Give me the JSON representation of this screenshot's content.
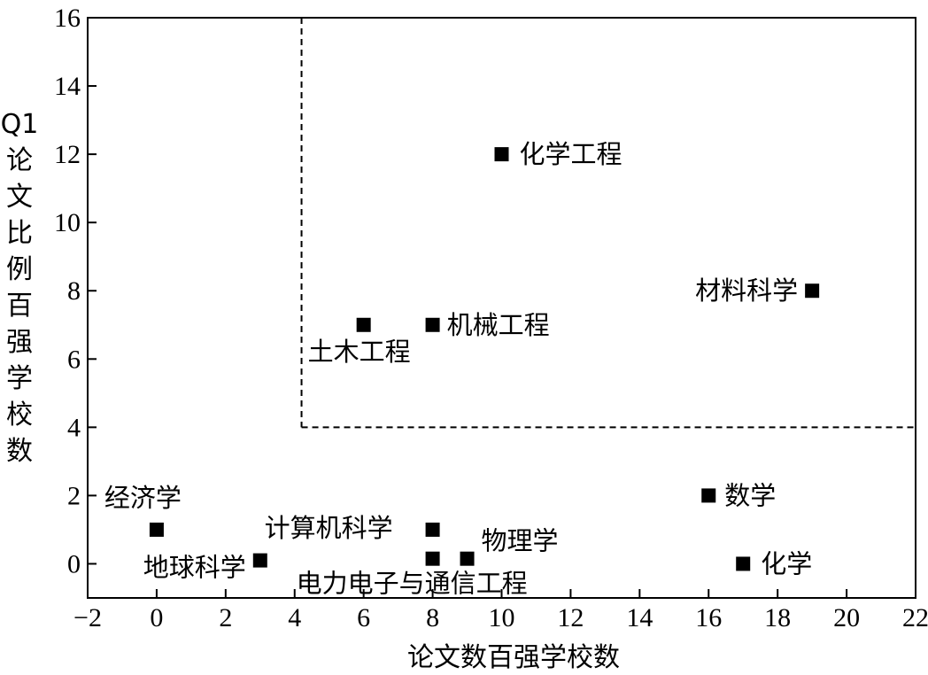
{
  "chart_data": {
    "type": "scatter",
    "xlabel": "论文数百强学校数",
    "ylabel": "Q1论文比例百强学校数",
    "xlim": [
      -2,
      22
    ],
    "ylim": [
      -1,
      16
    ],
    "xticks": [
      -2,
      0,
      2,
      4,
      6,
      8,
      10,
      12,
      14,
      16,
      18,
      20,
      22
    ],
    "yticks": [
      0,
      2,
      4,
      6,
      8,
      10,
      12,
      14,
      16
    ],
    "tick_labels_x": [
      "−2",
      "0",
      "2",
      "4",
      "6",
      "8",
      "10",
      "12",
      "14",
      "16",
      "18",
      "20",
      "22"
    ],
    "tick_labels_y": [
      "0",
      "2",
      "4",
      "6",
      "8",
      "10",
      "12",
      "14",
      "16"
    ],
    "grid": false,
    "marker": "square",
    "marker_color": "#000000",
    "threshold_lines": {
      "x": 4.2,
      "y": 4,
      "style": "dashed"
    },
    "points": [
      {
        "label": "化学工程",
        "x": 10,
        "y": 12
      },
      {
        "label": "材料科学",
        "x": 19,
        "y": 8
      },
      {
        "label": "土木工程",
        "x": 6,
        "y": 7
      },
      {
        "label": "机械工程",
        "x": 8,
        "y": 7
      },
      {
        "label": "数学",
        "x": 16,
        "y": 2
      },
      {
        "label": "经济学",
        "x": 0,
        "y": 1
      },
      {
        "label": "计算机科学",
        "x": 8,
        "y": 1
      },
      {
        "label": "物理学",
        "x": 9,
        "y": 0.15
      },
      {
        "label": "地球科学",
        "x": 3,
        "y": 0.1
      },
      {
        "label": "电力电子与通信工程",
        "x": 8,
        "y": 0.15
      },
      {
        "label": "化学",
        "x": 17,
        "y": 0
      }
    ]
  }
}
